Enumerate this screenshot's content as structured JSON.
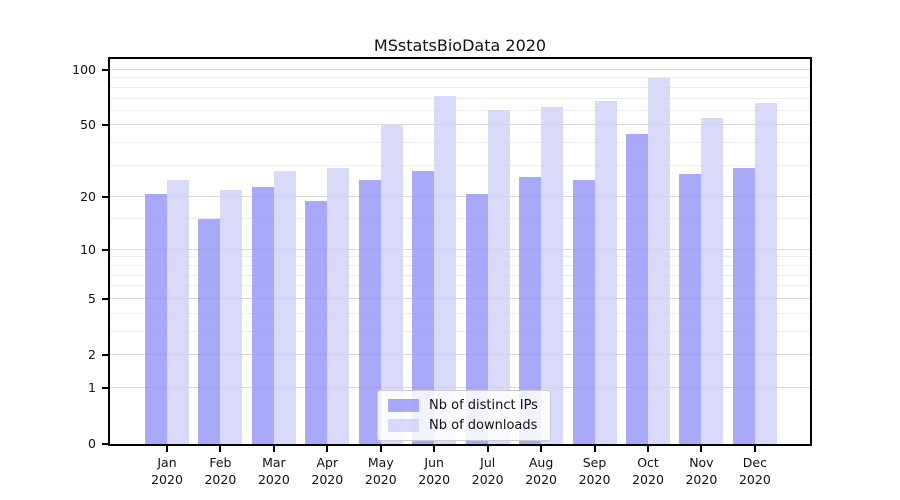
{
  "title": "MSstatsBioData 2020",
  "chart_data": {
    "type": "bar",
    "title": "MSstatsBioData 2020",
    "xlabel": "",
    "ylabel": "",
    "scale": "log1p",
    "grid": "horizontal",
    "legend_position": "lower center",
    "year": "2020",
    "categories": [
      "Jan",
      "Feb",
      "Mar",
      "Apr",
      "May",
      "Jun",
      "Jul",
      "Aug",
      "Sep",
      "Oct",
      "Nov",
      "Dec"
    ],
    "series": [
      {
        "name": "Nb of distinct IPs",
        "color_hex": "#a9a9fa",
        "fill": "rgba(148,148,249,0.8)",
        "values": [
          21,
          15,
          23,
          19,
          25,
          28,
          21,
          26,
          25,
          45,
          27,
          29
        ]
      },
      {
        "name": "Nb of downloads",
        "color_hex": "#d9d9fa",
        "fill": "rgba(208,208,249,0.8)",
        "values": [
          25,
          22,
          28,
          29,
          50,
          72,
          61,
          63,
          68,
          91,
          55,
          66
        ]
      }
    ],
    "y_ticks": [
      0,
      1,
      2,
      5,
      10,
      20,
      50,
      100
    ],
    "y_minor_gridlines": [
      3,
      4,
      6,
      7,
      8,
      9,
      15,
      30,
      40,
      60,
      70,
      80,
      90
    ],
    "ylim": [
      0,
      115
    ]
  },
  "colors": {
    "grid_major": "#d8d8d8",
    "grid_minor": "#ededed",
    "axis": "#000000",
    "text": "#111111",
    "background": "#ffffff"
  }
}
